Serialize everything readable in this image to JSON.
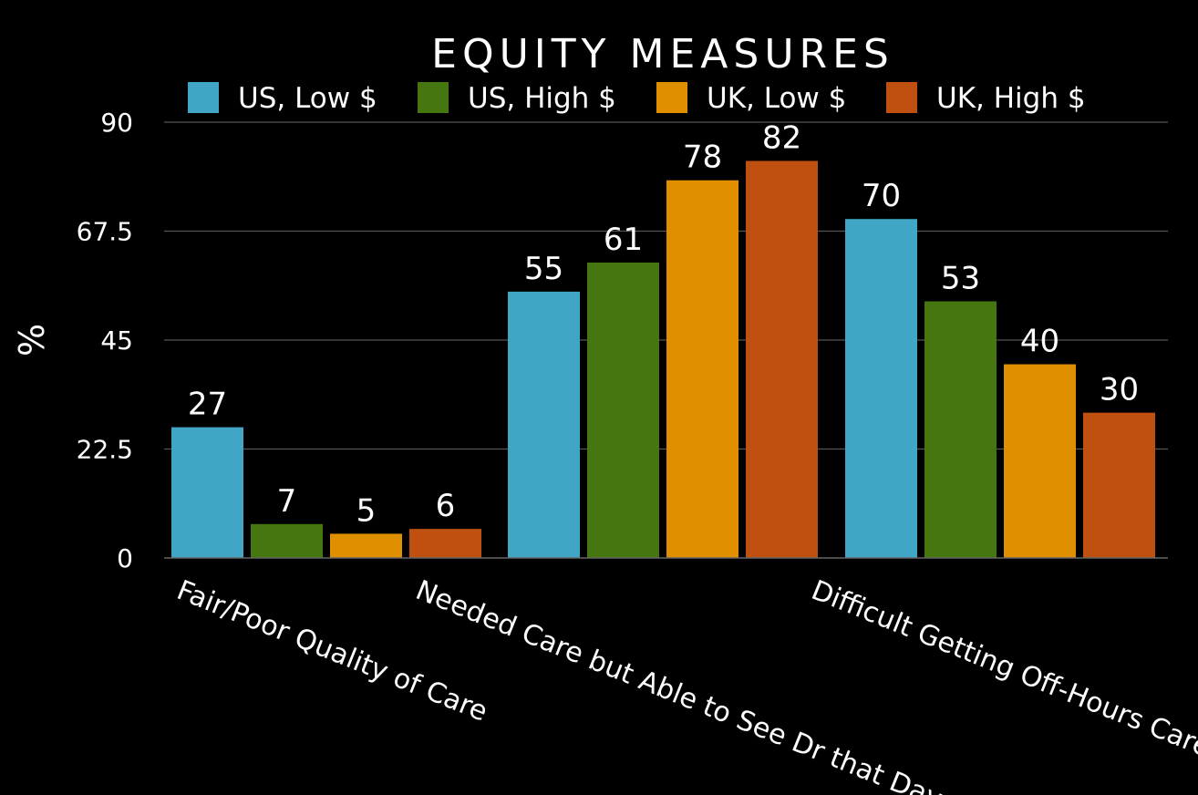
{
  "chart_data": {
    "type": "bar",
    "title": "EQUITY MEASURES",
    "ylabel": "%",
    "xlabel": "",
    "ylim": [
      0,
      90
    ],
    "yticks": [
      "0",
      "22.5",
      "45",
      "67.5",
      "90"
    ],
    "grid": true,
    "legend_position": "top",
    "categories": [
      "Fair/Poor Quality of Care",
      "Needed Care but Able to See Dr that Day",
      "Difficult Getting Off-Hours Care"
    ],
    "series": [
      {
        "name": "US, Low $",
        "color": "#41a6c6",
        "values": [
          27,
          55,
          70
        ]
      },
      {
        "name": "US, High $",
        "color": "#46760f",
        "values": [
          7,
          61,
          53
        ]
      },
      {
        "name": "UK, Low $",
        "color": "#e08f00",
        "values": [
          5,
          78,
          40
        ]
      },
      {
        "name": "UK, High $",
        "color": "#c05010",
        "values": [
          6,
          82,
          30
        ]
      }
    ]
  }
}
